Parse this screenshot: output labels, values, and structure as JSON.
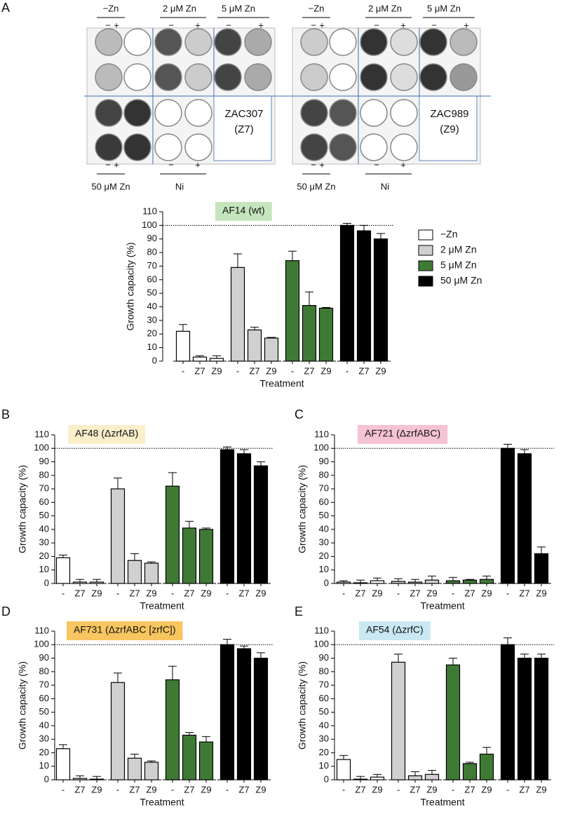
{
  "panel_a": {
    "label": "A",
    "top_headers": [
      "−Zn",
      "2 μM Zn",
      "5 μM Zn"
    ],
    "signs": [
      "−",
      "+"
    ],
    "bottom_headers": [
      "50 μM Zn",
      "Ni"
    ],
    "plates": [
      {
        "strain": "ZAC307",
        "code": "(Z7)"
      },
      {
        "strain": "ZAC989",
        "code": "(Z9)"
      }
    ]
  },
  "chart_data": [
    {
      "type": "bar",
      "label": "A",
      "title": "AF14 (wt)",
      "title_bg": "#c6e5bd",
      "legend": true,
      "y_label": "Growth capacity (%)",
      "x_label": "Treatment",
      "categories": [
        "-",
        "Z7",
        "Z9"
      ],
      "ylim": [
        0,
        110
      ],
      "yticks": [
        0,
        10,
        20,
        30,
        40,
        50,
        60,
        70,
        80,
        90,
        100,
        110
      ],
      "hline": 100,
      "series": [
        {
          "name": "−Zn",
          "color": "#ffffff",
          "values": [
            22,
            3,
            2
          ],
          "errors": [
            5,
            1,
            2
          ]
        },
        {
          "name": "2 μM Zn",
          "color": "#d0d0d0",
          "values": [
            69,
            23,
            17
          ],
          "errors": [
            10,
            2,
            0.5
          ]
        },
        {
          "name": "5 μM Zn",
          "color": "#3f7a35",
          "values": [
            74,
            41,
            39
          ],
          "errors": [
            7,
            10,
            0.5
          ]
        },
        {
          "name": "50 μM Zn",
          "color": "#000000",
          "values": [
            100,
            96,
            90
          ],
          "errors": [
            1.5,
            4,
            4
          ]
        }
      ]
    },
    {
      "type": "bar",
      "label": "B",
      "title": "AF48 (ΔzrfAB)",
      "title_bg": "#fbeecb",
      "legend": false,
      "y_label": "Growth capacity (%)",
      "x_label": "Treatment",
      "categories": [
        "-",
        "Z7",
        "Z9"
      ],
      "ylim": [
        0,
        110
      ],
      "yticks": [
        0,
        10,
        20,
        30,
        40,
        50,
        60,
        70,
        80,
        90,
        100,
        110
      ],
      "hline": 100,
      "series": [
        {
          "name": "−Zn",
          "color": "#ffffff",
          "values": [
            19,
            1,
            1
          ],
          "errors": [
            2,
            2,
            2
          ]
        },
        {
          "name": "2 μM Zn",
          "color": "#d0d0d0",
          "values": [
            70,
            17,
            15
          ],
          "errors": [
            8,
            5,
            1
          ]
        },
        {
          "name": "5 μM Zn",
          "color": "#3f7a35",
          "values": [
            72,
            41,
            40
          ],
          "errors": [
            10,
            5,
            1
          ]
        },
        {
          "name": "50 μM Zn",
          "color": "#000000",
          "values": [
            99,
            96,
            87
          ],
          "errors": [
            2,
            3,
            3
          ]
        }
      ]
    },
    {
      "type": "bar",
      "label": "C",
      "title": "AF721 (ΔzrfABC)",
      "title_bg": "#f5c3d3",
      "legend": false,
      "y_label": "Growth capacity (%)",
      "x_label": "Treatment",
      "categories": [
        "-",
        "Z7",
        "Z9"
      ],
      "ylim": [
        0,
        110
      ],
      "yticks": [
        0,
        10,
        20,
        30,
        40,
        50,
        60,
        70,
        80,
        90,
        100,
        110
      ],
      "hline": 100,
      "series": [
        {
          "name": "−Zn",
          "color": "#ffffff",
          "values": [
            1,
            0.5,
            2
          ],
          "errors": [
            1,
            2,
            2
          ]
        },
        {
          "name": "2 μM Zn",
          "color": "#d0d0d0",
          "values": [
            1.5,
            1,
            2.5
          ],
          "errors": [
            2,
            2,
            3
          ]
        },
        {
          "name": "5 μM Zn",
          "color": "#3f7a35",
          "values": [
            2,
            2.5,
            3
          ],
          "errors": [
            2.5,
            0.5,
            2.5
          ]
        },
        {
          "name": "50 μM Zn",
          "color": "#000000",
          "values": [
            100,
            96,
            22
          ],
          "errors": [
            3,
            3,
            5
          ]
        }
      ]
    },
    {
      "type": "bar",
      "label": "D",
      "title": "AF731 (ΔzrfABC [zrfC])",
      "title_bg": "#f8c660",
      "legend": false,
      "y_label": "Growth capacity (%)",
      "x_label": "Treatment",
      "categories": [
        "-",
        "Z7",
        "Z9"
      ],
      "ylim": [
        0,
        110
      ],
      "yticks": [
        0,
        10,
        20,
        30,
        40,
        50,
        60,
        70,
        80,
        90,
        100,
        110
      ],
      "hline": 100,
      "series": [
        {
          "name": "−Zn",
          "color": "#ffffff",
          "values": [
            23,
            1,
            0.5
          ],
          "errors": [
            3,
            2,
            2
          ]
        },
        {
          "name": "2 μM Zn",
          "color": "#d0d0d0",
          "values": [
            72,
            16,
            13
          ],
          "errors": [
            7,
            3,
            1
          ]
        },
        {
          "name": "5 μM Zn",
          "color": "#3f7a35",
          "values": [
            74,
            33,
            28
          ],
          "errors": [
            10,
            2,
            4
          ]
        },
        {
          "name": "50 μM Zn",
          "color": "#000000",
          "values": [
            100,
            97,
            90
          ],
          "errors": [
            4,
            2,
            4
          ]
        }
      ]
    },
    {
      "type": "bar",
      "label": "E",
      "title": "AF54 (ΔzrfC)",
      "title_bg": "#c9e8f3",
      "legend": false,
      "y_label": "Growth capacity (%)",
      "x_label": "Treatment",
      "categories": [
        "-",
        "Z7",
        "Z9"
      ],
      "ylim": [
        0,
        110
      ],
      "yticks": [
        0,
        10,
        20,
        30,
        40,
        50,
        60,
        70,
        80,
        90,
        100,
        110
      ],
      "hline": 100,
      "series": [
        {
          "name": "−Zn",
          "color": "#ffffff",
          "values": [
            15,
            0.5,
            2
          ],
          "errors": [
            3,
            2,
            2
          ]
        },
        {
          "name": "2 μM Zn",
          "color": "#d0d0d0",
          "values": [
            87,
            3,
            4
          ],
          "errors": [
            6,
            3,
            3
          ]
        },
        {
          "name": "5 μM Zn",
          "color": "#3f7a35",
          "values": [
            85,
            12,
            19
          ],
          "errors": [
            5,
            1,
            5
          ]
        },
        {
          "name": "50 μM Zn",
          "color": "#000000",
          "values": [
            100,
            90,
            90
          ],
          "errors": [
            5,
            3,
            3
          ]
        }
      ]
    }
  ]
}
